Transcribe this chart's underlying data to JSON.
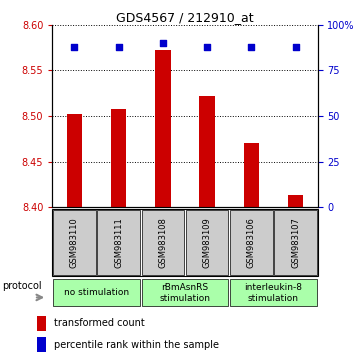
{
  "title": "GDS4567 / 212910_at",
  "samples": [
    "GSM983110",
    "GSM983111",
    "GSM983108",
    "GSM983109",
    "GSM983106",
    "GSM983107"
  ],
  "bar_values": [
    8.502,
    8.508,
    8.572,
    8.522,
    8.47,
    8.413
  ],
  "percentile_values": [
    88,
    88,
    90,
    88,
    88,
    88
  ],
  "ylim_left": [
    8.4,
    8.6
  ],
  "ylim_right": [
    0,
    100
  ],
  "yticks_left": [
    8.4,
    8.45,
    8.5,
    8.55,
    8.6
  ],
  "yticks_right": [
    0,
    25,
    50,
    75,
    100
  ],
  "bar_color": "#cc0000",
  "dot_color": "#0000cc",
  "bar_width": 0.35,
  "group_defs": [
    {
      "label": "no stimulation",
      "start": 0,
      "end": 2,
      "color": "#aaffaa"
    },
    {
      "label": "rBmAsnRS\nstimulation",
      "start": 2,
      "end": 4,
      "color": "#aaffaa"
    },
    {
      "label": "interleukin-8\nstimulation",
      "start": 4,
      "end": 6,
      "color": "#aaffaa"
    }
  ],
  "legend_bar_label": "transformed count",
  "legend_dot_label": "percentile rank within the sample",
  "protocol_label": "protocol",
  "sample_bg_color": "#cccccc",
  "title_fontsize": 9,
  "tick_fontsize": 7,
  "sample_fontsize": 6,
  "group_fontsize": 6.5,
  "legend_fontsize": 7
}
